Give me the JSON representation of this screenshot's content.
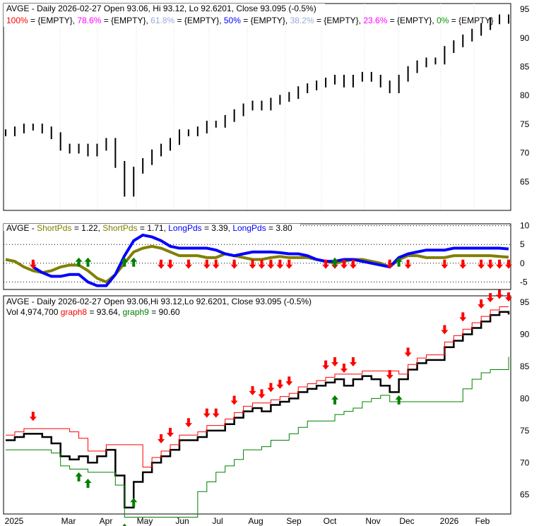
{
  "chart_data": [
    {
      "type": "line",
      "panel": "price-fibonacci",
      "title": "AVGE - Daily 2026-02-27 Open 93.06, Hi 93.12, Lo 92.6201, Close 93.095 (-0.5%)",
      "legend": [
        {
          "label": "100%",
          "text": " = {EMPTY}, ",
          "color": "#ff0000"
        },
        {
          "label": "78.6%",
          "text": " = {EMPTY}, ",
          "color": "#ff00ff"
        },
        {
          "label": "61.8%",
          "text": " = {EMPTY}, ",
          "color": "#99aadd"
        },
        {
          "label": "50%",
          "text": " = {EMPTY}, ",
          "color": "#0000ff"
        },
        {
          "label": "38.2%",
          "text": " = {EMPTY}, ",
          "color": "#99aadd"
        },
        {
          "label": "23.6%",
          "text": " = {EMPTY}, ",
          "color": "#ff00ff"
        },
        {
          "label": "0%",
          "text": " = {EMPTY}",
          "color": "#009900"
        }
      ],
      "yticks": [
        "95",
        "90",
        "85",
        "80",
        "75",
        "70",
        "65"
      ],
      "ylim": [
        60,
        96
      ]
    },
    {
      "type": "line",
      "panel": "oscillator",
      "title": "AVGE - ",
      "legend": [
        {
          "label": "ShortPds",
          "text": " = 1.22, ",
          "color": "#808000"
        },
        {
          "label": "ShortPds",
          "text": " = 1.71, ",
          "color": "#808000"
        },
        {
          "label": "LongPds",
          "text": " = 3.39, ",
          "color": "#0000ff"
        },
        {
          "label": "LongPds",
          "text": " = 3.80",
          "color": "#0000ff"
        }
      ],
      "yticks": [
        "10",
        "5",
        "0",
        "-5"
      ],
      "ylim": [
        -7,
        10.5
      ],
      "short_pds": [
        1,
        0.5,
        -1,
        -2,
        -2.5,
        -2,
        -1,
        -0.5,
        -0.5,
        -2,
        -4,
        -5,
        -3,
        0,
        3,
        4,
        4.5,
        4,
        3,
        2,
        2,
        2,
        1.5,
        1.5,
        2.5,
        2,
        1.5,
        1,
        1,
        1.5,
        1.8,
        1.5,
        1.5,
        1.5,
        1,
        0.5,
        0,
        0.5,
        1,
        1,
        0.5,
        0,
        -1,
        1,
        2,
        2,
        1.5,
        1.5,
        1.5,
        2,
        2,
        2,
        2,
        2,
        1.8,
        1.6
      ],
      "long_pds": [
        null,
        null,
        null,
        -1,
        -2.5,
        -3.5,
        -3.5,
        -3,
        -3,
        -5,
        -6,
        -6,
        -3,
        2,
        6,
        7.5,
        7,
        6,
        4.5,
        4,
        4,
        4,
        4,
        3.5,
        2.5,
        2,
        2.5,
        3,
        3,
        3,
        2.8,
        2.5,
        2.5,
        2,
        1,
        0.5,
        0.5,
        1,
        1,
        0.5,
        0,
        -0.5,
        -1,
        1.5,
        2.5,
        3,
        3.5,
        3.5,
        3.5,
        4,
        4,
        4,
        4,
        4,
        4,
        3.8
      ]
    },
    {
      "type": "line",
      "panel": "price-stops",
      "title": "AVGE - Daily 2026-02-27 Open 93.06,Hi 93.12,Lo 92.6201, Close 93.095 (-0.5%)",
      "vol_label": "Vol 4,974,700 ",
      "legend": [
        {
          "label": "graph8",
          "text": " = 93.64, ",
          "color": "#ff0000"
        },
        {
          "label": "graph9",
          "text": " = 90.60",
          "color": "#008000"
        }
      ],
      "yticks": [
        "95",
        "90",
        "85",
        "80",
        "75",
        "70",
        "65"
      ],
      "ylim": [
        62,
        96
      ]
    }
  ],
  "series": {
    "close": [
      73.5,
      74,
      74.5,
      74.5,
      74,
      73,
      71,
      70.5,
      71,
      70,
      71,
      72,
      68,
      63,
      67,
      68.5,
      70,
      71,
      72,
      73.5,
      73.5,
      74,
      75,
      75,
      76,
      77,
      78,
      78.5,
      78,
      79,
      79.5,
      80,
      81,
      81.5,
      82,
      82.5,
      83,
      82,
      83,
      83.5,
      83,
      82,
      81,
      83,
      84.5,
      85.5,
      86,
      86,
      88,
      89,
      90,
      91,
      92,
      93,
      93.5,
      93.1
    ],
    "sell_signals": [
      3,
      17,
      18,
      20,
      22,
      23,
      25,
      27,
      28,
      29,
      30,
      31,
      35,
      36,
      37,
      38,
      42,
      44,
      48,
      50,
      52,
      53,
      54,
      55
    ],
    "buy_signals": [
      8,
      9,
      13,
      14,
      36,
      43
    ]
  },
  "xticks": [
    "2025",
    "Mar",
    "Apr",
    "May",
    "Jun",
    "Jul",
    "Aug",
    "Sep",
    "Oct",
    "Nov",
    "Dec",
    "2026",
    "Feb"
  ]
}
